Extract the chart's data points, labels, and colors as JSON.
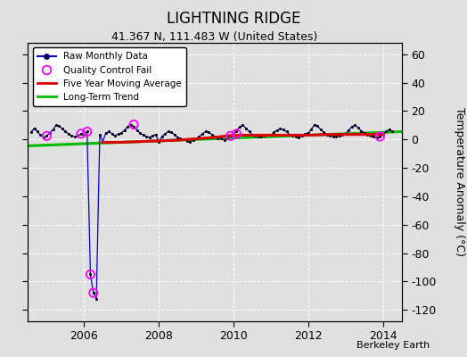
{
  "title": "LIGHTNING RIDGE",
  "subtitle": "41.367 N, 111.483 W (United States)",
  "ylabel": "Temperature Anomaly (°C)",
  "watermark": "Berkeley Earth",
  "xlim": [
    2004.5,
    2014.5
  ],
  "ylim": [
    -128,
    68
  ],
  "yticks": [
    -120,
    -100,
    -80,
    -60,
    -40,
    -20,
    0,
    20,
    40,
    60
  ],
  "xticks": [
    2006,
    2008,
    2010,
    2012,
    2014
  ],
  "background_color": "#e0e0e0",
  "raw_color": "#0000cc",
  "raw_dot_color": "#000000",
  "qc_color": "#ff00ff",
  "mavg_color": "#dd0000",
  "trend_color": "#00bb00",
  "raw_monthly_x": [
    2004.58,
    2004.67,
    2004.75,
    2004.83,
    2004.92,
    2005.0,
    2005.08,
    2005.17,
    2005.25,
    2005.33,
    2005.42,
    2005.5,
    2005.58,
    2005.67,
    2005.75,
    2005.83,
    2005.92,
    2006.0,
    2006.08,
    2006.17,
    2006.25,
    2006.33,
    2006.42,
    2006.5,
    2006.58,
    2006.67,
    2006.75,
    2006.83,
    2006.92,
    2007.0,
    2007.08,
    2007.17,
    2007.25,
    2007.33,
    2007.42,
    2007.5,
    2007.58,
    2007.67,
    2007.75,
    2007.83,
    2007.92,
    2008.0,
    2008.08,
    2008.17,
    2008.25,
    2008.33,
    2008.42,
    2008.5,
    2008.58,
    2008.67,
    2008.75,
    2008.83,
    2008.92,
    2009.0,
    2009.08,
    2009.17,
    2009.25,
    2009.33,
    2009.42,
    2009.5,
    2009.58,
    2009.67,
    2009.75,
    2009.83,
    2009.92,
    2010.0,
    2010.08,
    2010.17,
    2010.25,
    2010.33,
    2010.42,
    2010.5,
    2010.58,
    2010.67,
    2010.75,
    2010.83,
    2010.92,
    2011.0,
    2011.08,
    2011.17,
    2011.25,
    2011.33,
    2011.42,
    2011.5,
    2011.58,
    2011.67,
    2011.75,
    2011.83,
    2011.92,
    2012.0,
    2012.08,
    2012.17,
    2012.25,
    2012.33,
    2012.42,
    2012.5,
    2012.58,
    2012.67,
    2012.75,
    2012.83,
    2012.92,
    2013.0,
    2013.08,
    2013.17,
    2013.25,
    2013.33,
    2013.42,
    2013.5,
    2013.58,
    2013.67,
    2013.75,
    2013.83,
    2013.92,
    2014.0,
    2014.08,
    2014.17,
    2014.25
  ],
  "raw_monthly_y": [
    5.0,
    8.0,
    5.5,
    3.0,
    1.5,
    2.5,
    4.5,
    7.0,
    10.0,
    9.5,
    7.5,
    5.5,
    4.0,
    2.5,
    2.0,
    2.5,
    4.0,
    3.5,
    5.5,
    -95.0,
    -108.0,
    -112.0,
    3.5,
    -1.5,
    4.5,
    5.5,
    4.0,
    2.5,
    4.0,
    4.5,
    6.5,
    9.0,
    10.5,
    9.0,
    6.5,
    4.5,
    3.0,
    2.0,
    1.5,
    2.5,
    3.5,
    -2.0,
    2.0,
    4.0,
    5.5,
    5.0,
    3.5,
    1.5,
    0.5,
    0.0,
    -1.0,
    -1.5,
    -0.5,
    0.5,
    2.0,
    4.0,
    5.5,
    5.0,
    3.5,
    2.0,
    1.0,
    0.5,
    -0.5,
    0.5,
    2.5,
    4.0,
    6.0,
    9.0,
    10.0,
    8.0,
    5.5,
    3.5,
    2.5,
    2.0,
    2.0,
    2.5,
    3.5,
    3.0,
    5.0,
    6.5,
    7.5,
    7.0,
    5.5,
    3.5,
    2.5,
    2.0,
    1.5,
    2.5,
    4.0,
    4.5,
    7.0,
    10.5,
    9.5,
    7.0,
    5.0,
    3.5,
    2.5,
    2.0,
    2.0,
    2.5,
    3.5,
    4.0,
    6.5,
    9.0,
    10.0,
    8.5,
    6.0,
    4.5,
    3.0,
    2.5,
    2.0,
    1.5,
    2.0,
    3.5,
    5.5,
    7.0,
    5.5
  ],
  "qc_fail_x": [
    2005.0,
    2005.92,
    2006.08,
    2006.17,
    2006.25,
    2007.33,
    2009.92,
    2010.08,
    2013.92
  ],
  "qc_fail_y": [
    2.5,
    4.0,
    5.5,
    -95.0,
    -108.0,
    10.5,
    2.5,
    4.0,
    2.0
  ],
  "mavg_x": [
    2006.5,
    2007.0,
    2007.5,
    2008.0,
    2008.5,
    2009.0,
    2009.5,
    2010.0,
    2010.5,
    2011.0,
    2011.5,
    2012.0,
    2012.5,
    2013.0,
    2013.5,
    2014.0
  ],
  "mavg_y": [
    -2.0,
    -2.0,
    -1.5,
    -1.0,
    -0.5,
    0.5,
    1.5,
    3.0,
    3.0,
    3.0,
    3.0,
    3.0,
    3.5,
    3.5,
    3.5,
    3.5
  ],
  "trend_x": [
    2004.5,
    2014.5
  ],
  "trend_y": [
    -4.5,
    5.5
  ]
}
